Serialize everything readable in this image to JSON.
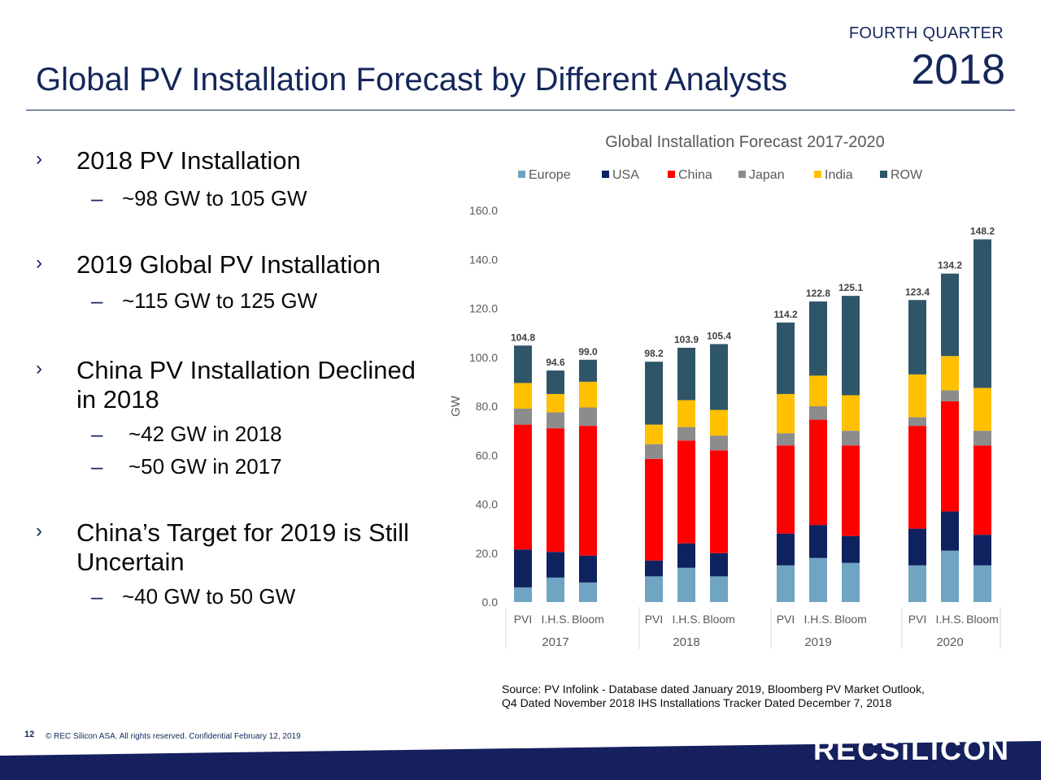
{
  "header": {
    "quarter": "FOURTH QUARTER",
    "year": "2018",
    "title": "Global PV Installation Forecast by Different Analysts"
  },
  "bullets": [
    {
      "text": "2018 PV Installation",
      "subs": [
        "~98 GW to 105 GW"
      ]
    },
    {
      "text": "2019 Global PV Installation",
      "subs": [
        "~115 GW to 125 GW"
      ]
    },
    {
      "text": "China PV Installation Declined in 2018",
      "subs": [
        "~42 GW in 2018",
        "~50 GW in 2017"
      ]
    },
    {
      "text": "China’s Target for 2019 is Still Uncertain",
      "subs": [
        "~40 GW to 50 GW"
      ]
    }
  ],
  "bullet_icon": "chevron-right-icon",
  "colors": {
    "navy": "#14275a",
    "Europe": "#6fa4c2",
    "USA": "#0f2260",
    "China": "#ff0000",
    "Japan": "#8c8c8c",
    "India": "#ffc000",
    "ROW": "#2e5668"
  },
  "chart_data": {
    "type": "bar",
    "stacked": true,
    "title": "Global Installation Forecast 2017-2020",
    "ylabel": "GW",
    "xlabel": "",
    "ylim": [
      0,
      160
    ],
    "yticks": [
      "0.0",
      "20.0",
      "40.0",
      "60.0",
      "80.0",
      "100.0",
      "120.0",
      "140.0",
      "160.0"
    ],
    "legend_position": "top",
    "groups": [
      "2017",
      "2018",
      "2019",
      "2020"
    ],
    "analysts": [
      "PVI",
      "I.H.S.",
      "Bloom"
    ],
    "series": [
      {
        "name": "Europe",
        "values": [
          6,
          10,
          8,
          10.5,
          14,
          10.5,
          15,
          18,
          16,
          15,
          21,
          15
        ]
      },
      {
        "name": "USA",
        "values": [
          15.5,
          10.5,
          11,
          6.5,
          10,
          9.5,
          13,
          13.5,
          11,
          15,
          16,
          12.5
        ]
      },
      {
        "name": "China",
        "values": [
          51,
          50.5,
          53,
          41.5,
          42,
          42,
          36,
          43,
          37,
          42,
          45,
          36.5
        ]
      },
      {
        "name": "Japan",
        "values": [
          6.5,
          6.5,
          7.5,
          6,
          5.5,
          6,
          5,
          5.5,
          6,
          3.5,
          4.5,
          6
        ]
      },
      {
        "name": "India",
        "values": [
          10.5,
          7.5,
          10.5,
          8,
          11,
          10.5,
          16,
          12.5,
          14.5,
          17.5,
          14,
          17.5
        ]
      },
      {
        "name": "ROW",
        "values": [
          15.3,
          9.6,
          9,
          25.7,
          21.4,
          26.9,
          29.2,
          30.3,
          40.6,
          30.4,
          33.7,
          60.7
        ]
      }
    ],
    "totals": [
      "104.8",
      "94.6",
      "99.0",
      "98.2",
      "103.9",
      "105.4",
      "114.2",
      "122.8",
      "125.1",
      "123.4",
      "134.2",
      "148.2"
    ]
  },
  "source": {
    "line1": "Source:  PV Infolink - Database dated January 2019, Bloomberg PV Market Outlook,",
    "line2": "Q4 Dated November 2018 IHS Installations Tracker Dated December 7, 2018"
  },
  "footer": {
    "page": "12",
    "copyright": "©  REC Silicon ASA. All rights reserved. Confidential  February 12, 2019",
    "logo": "RECSiLICON"
  }
}
